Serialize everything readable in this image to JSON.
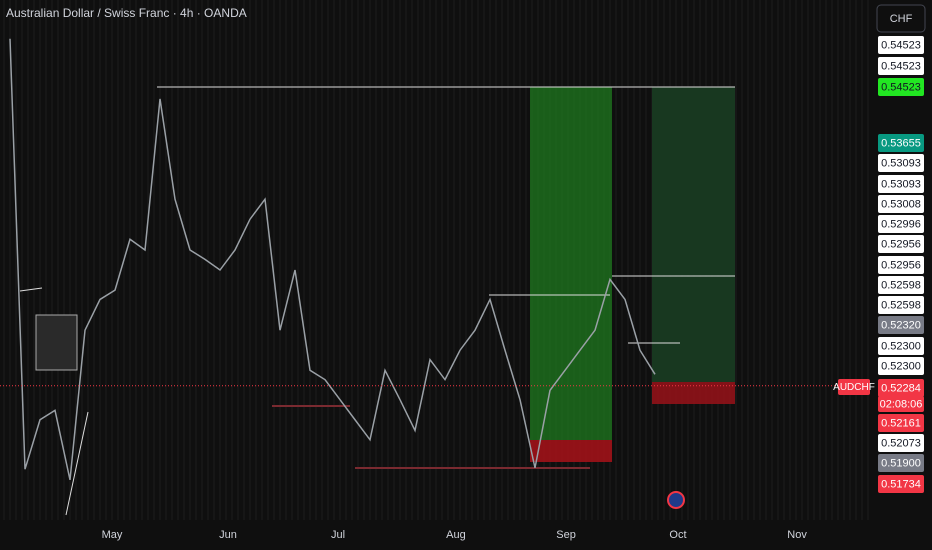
{
  "chart_data": {
    "type": "line",
    "title": "Australian Dollar / Swiss Franc · 4h · OANDA",
    "currency": "CHF",
    "symbol": "AUDCHF",
    "countdown": "02:08:06",
    "last_price": 0.52284,
    "series": [
      {
        "name": "AUDCHF",
        "color": "#9aa0a6",
        "values": [
          0.5488,
          0.5166,
          0.5203,
          0.521,
          0.5158,
          0.527,
          0.5293,
          0.53,
          0.5338,
          0.533,
          0.5443,
          0.5368,
          0.533,
          0.5323,
          0.5315,
          0.533,
          0.5353,
          0.5368,
          0.527,
          0.5315,
          0.524,
          0.5233,
          0.5218,
          0.5203,
          0.5188,
          0.524,
          0.5218,
          0.5195,
          0.5248,
          0.5233,
          0.5255,
          0.527,
          0.5293,
          0.5255,
          0.5218,
          0.5167,
          0.5225,
          0.524,
          0.5255,
          0.527,
          0.5308,
          0.5293,
          0.5255,
          0.5237
        ]
      }
    ],
    "xlim": [
      -0.667,
      57.333
    ],
    "ylim": [
      0.5128,
      0.5517
    ],
    "xticks": [
      {
        "value": 6.8,
        "label": "May"
      },
      {
        "value": 14.53,
        "label": "Jun"
      },
      {
        "value": 21.87,
        "label": "Jul"
      },
      {
        "value": 29.73,
        "label": "Aug"
      },
      {
        "value": 37.07,
        "label": "Sep"
      },
      {
        "value": 44.53,
        "label": "Oct"
      },
      {
        "value": 52.47,
        "label": "Nov"
      }
    ],
    "price_tags": [
      {
        "value": 0.54523,
        "color": "#ffffff"
      },
      {
        "value": 0.54523,
        "color": "#ffffff"
      },
      {
        "value": 0.54523,
        "color": "#22e622"
      },
      {
        "value": 0.53655,
        "color": "#089981"
      },
      {
        "value": 0.53093,
        "color": "#ffffff"
      },
      {
        "value": 0.53093,
        "color": "#ffffff"
      },
      {
        "value": 0.53008,
        "color": "#ffffff"
      },
      {
        "value": 0.52996,
        "color": "#ffffff"
      },
      {
        "value": 0.52956,
        "color": "#ffffff"
      },
      {
        "value": 0.52956,
        "color": "#ffffff"
      },
      {
        "value": 0.52598,
        "color": "#ffffff"
      },
      {
        "value": 0.52598,
        "color": "#ffffff"
      },
      {
        "value": 0.5232,
        "label": "0.52320",
        "color": "#787b86"
      },
      {
        "value": 0.523,
        "label": "0.52300",
        "color": "#ffffff"
      },
      {
        "value": 0.523,
        "label": "0.52300",
        "color": "#ffffff"
      },
      {
        "value": 0.52284,
        "color": "#f23645"
      },
      {
        "value": 0.52161,
        "color": "#f23645"
      },
      {
        "value": 0.52073,
        "color": "#ffffff"
      },
      {
        "value": 0.519,
        "label": "0.51900",
        "color": "#787b86"
      },
      {
        "value": 0.51734,
        "color": "#f23645"
      }
    ]
  }
}
